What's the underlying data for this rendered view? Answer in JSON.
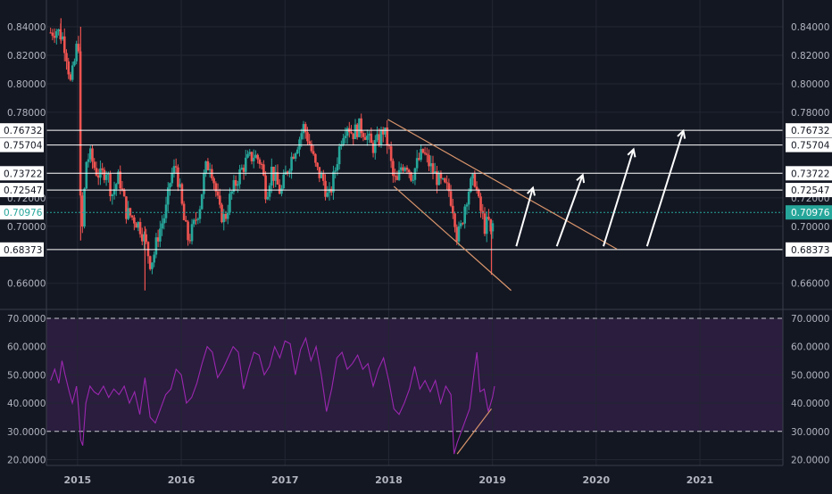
{
  "chart_data": [
    {
      "type": "candlestick",
      "pane": "price",
      "y_ticks": [
        "0.84000",
        "0.82000",
        "0.80000",
        "0.78000",
        "0.72000",
        "0.70000",
        "0.66000"
      ],
      "ylim": [
        0.65,
        0.85
      ],
      "xlim": [
        2014.7,
        2021.8
      ],
      "x_ticks": [
        "2015",
        "2016",
        "2017",
        "2018",
        "2019",
        "2020",
        "2021"
      ],
      "grid": true,
      "current_price": {
        "label": "0.70976",
        "value": 0.70976,
        "color": "#26a69a"
      },
      "horizontal_levels": [
        {
          "label": "0.76732",
          "value": 0.76732
        },
        {
          "label": "0.75704",
          "value": 0.75704
        },
        {
          "label": "0.73722",
          "value": 0.73722
        },
        {
          "label": "0.72547",
          "value": 0.72547
        },
        {
          "label": "0.68373",
          "value": 0.68373
        }
      ],
      "trend_lines": [
        {
          "from": [
            2017.99,
            0.775
          ],
          "to": [
            2020.2,
            0.684
          ]
        },
        {
          "from": [
            2018.05,
            0.728
          ],
          "to": [
            2019.18,
            0.655
          ]
        }
      ],
      "arrows": [
        {
          "from": [
            2019.23,
            0.686
          ],
          "to": [
            2019.39,
            0.727
          ]
        },
        {
          "from": [
            2019.62,
            0.686
          ],
          "to": [
            2019.87,
            0.736
          ]
        },
        {
          "from": [
            2020.07,
            0.686
          ],
          "to": [
            2020.36,
            0.754
          ]
        },
        {
          "from": [
            2020.49,
            0.686
          ],
          "to": [
            2020.84,
            0.767
          ]
        }
      ],
      "colors": {
        "up": "#26a69a",
        "down": "#ef5350",
        "levels": "#ffffff",
        "trend": "#d9956b"
      },
      "candles_weekly_approx": {
        "start": 2014.74,
        "step": 0.0192,
        "close_path": [
          [
            2014.74,
            0.836
          ],
          [
            2014.8,
            0.838
          ],
          [
            2014.86,
            0.832
          ],
          [
            2014.9,
            0.818
          ],
          [
            2014.93,
            0.8
          ],
          [
            2014.96,
            0.81
          ],
          [
            2015.0,
            0.83
          ],
          [
            2015.02,
            0.825
          ],
          [
            2015.03,
            0.69
          ],
          [
            2015.05,
            0.7
          ],
          [
            2015.08,
            0.745
          ],
          [
            2015.12,
            0.75
          ],
          [
            2015.17,
            0.74
          ],
          [
            2015.22,
            0.735
          ],
          [
            2015.28,
            0.74
          ],
          [
            2015.33,
            0.722
          ],
          [
            2015.4,
            0.735
          ],
          [
            2015.47,
            0.71
          ],
          [
            2015.55,
            0.705
          ],
          [
            2015.6,
            0.7
          ],
          [
            2015.65,
            0.69
          ],
          [
            2015.7,
            0.675
          ],
          [
            2015.73,
            0.678
          ],
          [
            2015.78,
            0.695
          ],
          [
            2015.85,
            0.71
          ],
          [
            2015.9,
            0.735
          ],
          [
            2015.95,
            0.742
          ],
          [
            2016.0,
            0.718
          ],
          [
            2016.02,
            0.706
          ],
          [
            2016.07,
            0.69
          ],
          [
            2016.12,
            0.7
          ],
          [
            2016.18,
            0.715
          ],
          [
            2016.23,
            0.74
          ],
          [
            2016.28,
            0.745
          ],
          [
            2016.32,
            0.73
          ],
          [
            2016.37,
            0.71
          ],
          [
            2016.42,
            0.705
          ],
          [
            2016.47,
            0.72
          ],
          [
            2016.55,
            0.735
          ],
          [
            2016.62,
            0.745
          ],
          [
            2016.7,
            0.75
          ],
          [
            2016.77,
            0.745
          ],
          [
            2016.82,
            0.722
          ],
          [
            2016.87,
            0.74
          ],
          [
            2016.92,
            0.73
          ],
          [
            2016.96,
            0.723
          ],
          [
            2017.0,
            0.735
          ],
          [
            2017.08,
            0.752
          ],
          [
            2017.13,
            0.76
          ],
          [
            2017.18,
            0.77
          ],
          [
            2017.23,
            0.76
          ],
          [
            2017.3,
            0.74
          ],
          [
            2017.37,
            0.732
          ],
          [
            2017.42,
            0.718
          ],
          [
            2017.48,
            0.738
          ],
          [
            2017.55,
            0.765
          ],
          [
            2017.6,
            0.772
          ],
          [
            2017.65,
            0.765
          ],
          [
            2017.72,
            0.77
          ],
          [
            2017.78,
            0.765
          ],
          [
            2017.84,
            0.755
          ],
          [
            2017.9,
            0.76
          ],
          [
            2017.95,
            0.768
          ],
          [
            2018.0,
            0.755
          ],
          [
            2018.04,
            0.735
          ],
          [
            2018.08,
            0.73
          ],
          [
            2018.12,
            0.742
          ],
          [
            2018.17,
            0.745
          ],
          [
            2018.22,
            0.735
          ],
          [
            2018.28,
            0.745
          ],
          [
            2018.33,
            0.752
          ],
          [
            2018.38,
            0.745
          ],
          [
            2018.43,
            0.738
          ],
          [
            2018.48,
            0.732
          ],
          [
            2018.53,
            0.728
          ],
          [
            2018.58,
            0.725
          ],
          [
            2018.63,
            0.71
          ],
          [
            2018.66,
            0.692
          ],
          [
            2018.7,
            0.7
          ],
          [
            2018.74,
            0.718
          ],
          [
            2018.78,
            0.728
          ],
          [
            2018.83,
            0.733
          ],
          [
            2018.87,
            0.715
          ],
          [
            2018.91,
            0.705
          ],
          [
            2018.93,
            0.698
          ],
          [
            2018.96,
            0.705
          ],
          [
            2018.99,
            0.69
          ],
          [
            2019.0,
            0.7
          ],
          [
            2019.02,
            0.71
          ]
        ]
      }
    },
    {
      "type": "line",
      "pane": "rsi",
      "y_ticks": [
        "70.0000",
        "60.0000",
        "50.0000",
        "40.0000",
        "30.0000",
        "20.0000"
      ],
      "ylim": [
        20,
        74
      ],
      "bands": [
        {
          "label": "70.0000",
          "value": 70
        },
        {
          "label": "30.0000",
          "value": 30
        }
      ],
      "colors": {
        "line": "#9c27b0",
        "band_fill": "#2a1d3e"
      },
      "series": [
        {
          "x": [
            2014.74,
            2014.78,
            2014.82,
            2014.85,
            2014.88,
            2014.92,
            2014.95,
            2014.99,
            2015.01,
            2015.03,
            2015.05,
            2015.08,
            2015.12,
            2015.16,
            2015.2,
            2015.25,
            2015.3,
            2015.35,
            2015.4,
            2015.45,
            2015.5,
            2015.55,
            2015.6,
            2015.65,
            2015.7,
            2015.75,
            2015.8,
            2015.85,
            2015.9,
            2015.95,
            2016.0,
            2016.05,
            2016.1,
            2016.15,
            2016.2,
            2016.25,
            2016.3,
            2016.35,
            2016.4,
            2016.45,
            2016.5,
            2016.55,
            2016.6,
            2016.65,
            2016.7,
            2016.75,
            2016.8,
            2016.85,
            2016.9,
            2016.95,
            2017.0,
            2017.05,
            2017.1,
            2017.15,
            2017.2,
            2017.25,
            2017.3,
            2017.35,
            2017.4,
            2017.45,
            2017.5,
            2017.55,
            2017.6,
            2017.65,
            2017.7,
            2017.75,
            2017.8,
            2017.85,
            2017.9,
            2017.95,
            2018.0,
            2018.05,
            2018.1,
            2018.15,
            2018.2,
            2018.25,
            2018.3,
            2018.35,
            2018.4,
            2018.45,
            2018.5,
            2018.55,
            2018.6,
            2018.63,
            2018.66,
            2018.7,
            2018.74,
            2018.78,
            2018.82,
            2018.85,
            2018.88,
            2018.92,
            2018.96,
            2019.0,
            2019.02
          ],
          "values": [
            48,
            52,
            47,
            55,
            50,
            44,
            40,
            46,
            38,
            27,
            25,
            40,
            46,
            44,
            43,
            46,
            42,
            45,
            43,
            46,
            40,
            44,
            36,
            49,
            35,
            33,
            38,
            43,
            45,
            52,
            50,
            40,
            42,
            47,
            54,
            60,
            58,
            49,
            52,
            56,
            60,
            58,
            45,
            52,
            58,
            57,
            50,
            53,
            60,
            56,
            62,
            61,
            50,
            59,
            63,
            55,
            60,
            50,
            37,
            45,
            56,
            58,
            52,
            54,
            57,
            52,
            54,
            46,
            52,
            56,
            48,
            38,
            36,
            40,
            45,
            53,
            45,
            48,
            44,
            48,
            40,
            46,
            43,
            22,
            26,
            30,
            34,
            38,
            50,
            58,
            44,
            45,
            37,
            42,
            46
          ]
        }
      ],
      "divergence_line": {
        "from": [
          2018.66,
          22
        ],
        "to": [
          2018.99,
          38
        ]
      }
    }
  ]
}
